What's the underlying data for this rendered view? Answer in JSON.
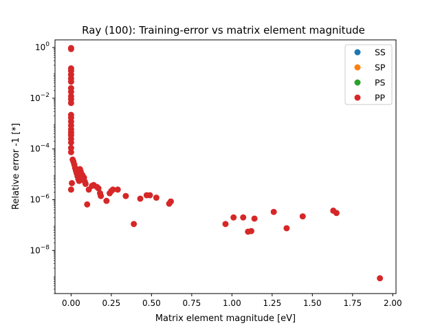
{
  "chart_data": {
    "type": "scatter",
    "title": "Ray (100): Training-error vs matrix element magnitude",
    "xlabel": "Matrix element magnitude [eV]",
    "ylabel": "Relative error -1 [*]",
    "xlim": [
      -0.1,
      2.02
    ],
    "ylim_log10": [
      -9.7,
      0.3
    ],
    "yscale": "log",
    "x_ticks": [
      "0.00",
      "0.25",
      "0.50",
      "0.75",
      "1.00",
      "1.25",
      "1.50",
      "1.75",
      "2.00"
    ],
    "y_ticks": [
      {
        "base": "10",
        "exp": "0",
        "log": 0
      },
      {
        "base": "10",
        "exp": "−2",
        "log": -2
      },
      {
        "base": "10",
        "exp": "−4",
        "log": -4
      },
      {
        "base": "10",
        "exp": "−6",
        "log": -6
      },
      {
        "base": "10",
        "exp": "−8",
        "log": -8
      }
    ],
    "legend_position": "top-right",
    "grid": false,
    "series": [
      {
        "name": "SS",
        "color": "#1f77b4",
        "points": []
      },
      {
        "name": "SP",
        "color": "#ff7f0e",
        "points": []
      },
      {
        "name": "PS",
        "color": "#2ca02c",
        "points": []
      },
      {
        "name": "PP",
        "color": "#d62728",
        "points": [
          [
            0.0,
            0.95
          ],
          [
            0.0,
            0.87
          ],
          [
            0.0,
            0.15
          ],
          [
            0.0,
            0.12
          ],
          [
            0.0,
            0.085
          ],
          [
            0.0,
            0.06
          ],
          [
            0.0,
            0.045
          ],
          [
            0.0,
            0.025
          ],
          [
            0.0,
            0.018
          ],
          [
            0.0,
            0.012
          ],
          [
            0.0,
            0.009
          ],
          [
            0.0,
            0.0065
          ],
          [
            0.0,
            0.0022
          ],
          [
            0.0,
            0.0017
          ],
          [
            0.0,
            0.0012
          ],
          [
            0.0,
            0.00085
          ],
          [
            0.0,
            0.0006
          ],
          [
            0.0,
            0.00045
          ],
          [
            0.0,
            0.00035
          ],
          [
            0.0,
            0.00025
          ],
          [
            0.0,
            0.00018
          ],
          [
            0.0,
            0.00011
          ],
          [
            0.0,
            7.5e-05
          ],
          [
            0.0,
            2.5e-06
          ],
          [
            0.005,
            4.5e-06
          ],
          [
            0.01,
            3.8e-05
          ],
          [
            0.015,
            3.1e-05
          ],
          [
            0.02,
            2.4e-05
          ],
          [
            0.025,
            1.8e-05
          ],
          [
            0.03,
            1.4e-05
          ],
          [
            0.035,
            1.1e-05
          ],
          [
            0.04,
            8.5e-06
          ],
          [
            0.045,
            6.5e-06
          ],
          [
            0.05,
            5.5e-06
          ],
          [
            0.055,
            1.6e-05
          ],
          [
            0.06,
            1.3e-05
          ],
          [
            0.07,
            9.5e-06
          ],
          [
            0.08,
            7.5e-06
          ],
          [
            0.085,
            5.2e-06
          ],
          [
            0.09,
            4.2e-06
          ],
          [
            0.1,
            6.5e-07
          ],
          [
            0.11,
            2.5e-06
          ],
          [
            0.13,
            3.5e-06
          ],
          [
            0.14,
            3.8e-06
          ],
          [
            0.16,
            3.2e-06
          ],
          [
            0.17,
            2.8e-06
          ],
          [
            0.18,
            1.8e-06
          ],
          [
            0.185,
            1.4e-06
          ],
          [
            0.22,
            9e-07
          ],
          [
            0.24,
            1.8e-06
          ],
          [
            0.25,
            2.2e-06
          ],
          [
            0.26,
            2.5e-06
          ],
          [
            0.29,
            2.5e-06
          ],
          [
            0.34,
            1.4e-06
          ],
          [
            0.39,
            1.1e-07
          ],
          [
            0.43,
            1.1e-06
          ],
          [
            0.47,
            1.5e-06
          ],
          [
            0.49,
            1.5e-06
          ],
          [
            0.53,
            1.2e-06
          ],
          [
            0.61,
            7e-07
          ],
          [
            0.62,
            8.5e-07
          ],
          [
            0.96,
            1.1e-07
          ],
          [
            1.01,
            2e-07
          ],
          [
            1.07,
            2e-07
          ],
          [
            1.1,
            5.5e-08
          ],
          [
            1.12,
            5.8e-08
          ],
          [
            1.14,
            1.8e-07
          ],
          [
            1.26,
            3.3e-07
          ],
          [
            1.34,
            7.5e-08
          ],
          [
            1.44,
            2.2e-07
          ],
          [
            1.63,
            3.7e-07
          ],
          [
            1.65,
            3e-07
          ],
          [
            1.92,
            8e-10
          ]
        ]
      }
    ]
  }
}
